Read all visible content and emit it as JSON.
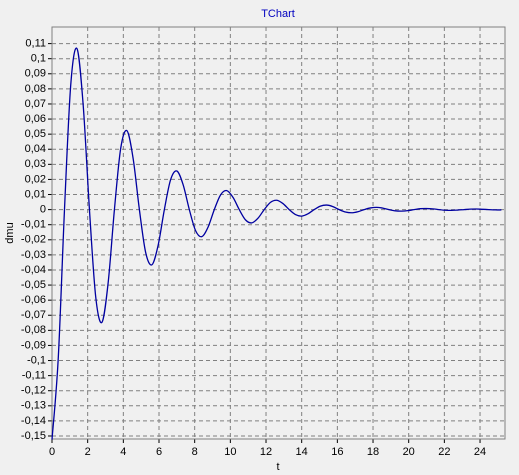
{
  "chart_data": {
    "type": "line",
    "title": "TChart",
    "xlabel": "t",
    "ylabel": "dmu",
    "xlim": [
      0,
      25.4
    ],
    "ylim": [
      -0.152,
      0.121
    ],
    "xticks": [
      0,
      2,
      4,
      6,
      8,
      10,
      12,
      14,
      16,
      18,
      20,
      22,
      24
    ],
    "yticks": [
      {
        "value": 0.11,
        "label": "0,11"
      },
      {
        "value": 0.1,
        "label": "0,1"
      },
      {
        "value": 0.09,
        "label": "0,09"
      },
      {
        "value": 0.08,
        "label": "0,08"
      },
      {
        "value": 0.07,
        "label": "0,07"
      },
      {
        "value": 0.06,
        "label": "0,06"
      },
      {
        "value": 0.05,
        "label": "0,05"
      },
      {
        "value": 0.04,
        "label": "0,04"
      },
      {
        "value": 0.03,
        "label": "0,03"
      },
      {
        "value": 0.02,
        "label": "0,02"
      },
      {
        "value": 0.01,
        "label": "0,01"
      },
      0,
      {
        "value": -0.01,
        "label": "-0,01"
      },
      {
        "value": -0.02,
        "label": "-0,02"
      },
      {
        "value": -0.03,
        "label": "-0,03"
      },
      {
        "value": -0.04,
        "label": "-0,04"
      },
      {
        "value": -0.05,
        "label": "-0,05"
      },
      {
        "value": -0.06,
        "label": "-0,06"
      },
      {
        "value": -0.07,
        "label": "-0,07"
      },
      {
        "value": -0.08,
        "label": "-0,08"
      },
      {
        "value": -0.09,
        "label": "-0,09"
      },
      {
        "value": -0.1,
        "label": "-0,1"
      },
      {
        "value": -0.11,
        "label": "-0,11"
      },
      {
        "value": -0.12,
        "label": "-0,12"
      },
      {
        "value": -0.13,
        "label": "-0,13"
      },
      {
        "value": -0.14,
        "label": "-0,14"
      },
      {
        "value": -0.15,
        "label": "-0,15"
      }
    ],
    "grid": true,
    "x": [
      0,
      0.35,
      0.7,
      1.05,
      1.4,
      1.75,
      2.1,
      2.45,
      2.8,
      3.15,
      3.5,
      3.85,
      4.2,
      4.55,
      4.9,
      5.25,
      5.6,
      5.95,
      6.3,
      6.65,
      7,
      7.35,
      7.7,
      8.05,
      8.4,
      8.75,
      9.1,
      9.45,
      9.8,
      10.15,
      10.5,
      10.85,
      11.2,
      11.55,
      11.9,
      12.25,
      12.6,
      12.95,
      13.3,
      13.65,
      14,
      14.35,
      14.7,
      15.05,
      15.4,
      15.75,
      16.1,
      16.45,
      16.8,
      17.15,
      17.5,
      17.85,
      18.2,
      18.55,
      18.9,
      19.25,
      19.6,
      19.95,
      20.3,
      20.65,
      21,
      21.35,
      21.7,
      22.05,
      22.4,
      22.75,
      23.1,
      23.45,
      23.8,
      24.15,
      24.5,
      24.85,
      25.2
    ],
    "series": [
      {
        "color": "#0000a0",
        "values": [
          -0.1524,
          -0.0986,
          0,
          0.0825,
          0.1067,
          0.069,
          0,
          -0.0577,
          -0.0747,
          -0.0483,
          0,
          0.0404,
          0.0523,
          0.0338,
          0,
          -0.0283,
          -0.0366,
          -0.0237,
          0,
          0.0198,
          0.0256,
          0.0166,
          0,
          -0.0139,
          -0.0179,
          -0.0116,
          0,
          0.0097,
          0.0126,
          0.0081,
          0,
          -0.0068,
          -0.0088,
          -0.0057,
          0,
          0.0048,
          0.0062,
          0.004,
          0,
          -0.0033,
          -0.0043,
          -0.0028,
          0,
          0.0023,
          0.003,
          0.002,
          0,
          -0.0016,
          -0.0021,
          -0.0014,
          0,
          0.0011,
          0.0015,
          0.001,
          0,
          -0.0008,
          -0.001,
          -0.0007,
          0,
          0.0006,
          0.0007,
          0.0005,
          0,
          -0.0004,
          -0.0005,
          -0.0003,
          0,
          0.0003,
          0.0004,
          0.0002,
          0,
          -0.0002,
          -0.0002
        ]
      }
    ]
  }
}
